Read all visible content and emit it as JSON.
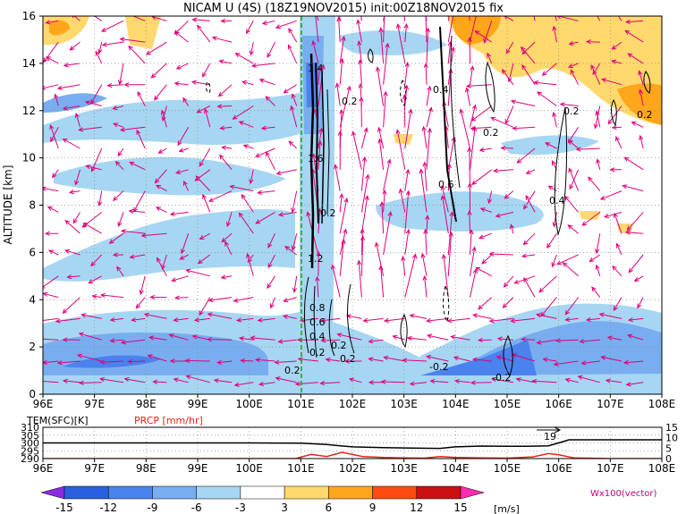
{
  "chart_data": [
    {
      "type": "heatmap",
      "title": "NICAM U (4S) (18Z19NOV2015) init:00Z18NOV2015 fix",
      "xlabel": "",
      "ylabel": "ALTITUDE [km]",
      "xlim": [
        96,
        108
      ],
      "ylim": [
        0,
        16
      ],
      "x_ticks": [
        "96E",
        "97E",
        "98E",
        "99E",
        "100E",
        "101E",
        "102E",
        "103E",
        "104E",
        "105E",
        "106E",
        "107E",
        "108E"
      ],
      "y_ticks": [
        "0",
        "2",
        "4",
        "6",
        "8",
        "10",
        "12",
        "14",
        "16"
      ],
      "grid": true,
      "shading": "U wind",
      "contour_labels": [
        "0.2",
        "0.2",
        "1.6",
        "0.2",
        "1.2",
        "0.8",
        "0.6",
        "0.4",
        "0.2",
        "0.2",
        "0.2",
        "0.4",
        "0.2",
        "0.4",
        "0.6",
        "0.2",
        "0.2",
        "0.2",
        "0.2",
        "0.4",
        "-0.2",
        "-0.2",
        "1.4",
        "1.2"
      ],
      "colorbar": {
        "levels": [
          "-15",
          "-12",
          "-9",
          "-6",
          "-3",
          "3",
          "6",
          "9",
          "12",
          "15"
        ],
        "colors": [
          "#8a2be2",
          "#2a5fe0",
          "#4a82ee",
          "#78aef0",
          "#a6d6f2",
          "#ffffff",
          "#ffd86e",
          "#ffa61a",
          "#ff4a12",
          "#cc0f12",
          "#ff2db0"
        ],
        "unit": "[m/s]"
      },
      "vector_label": "Wx100(vector)"
    },
    {
      "type": "line",
      "title": "",
      "xlim": [
        96,
        108
      ],
      "x_ticks": [
        "96E",
        "97E",
        "98E",
        "99E",
        "100E",
        "101E",
        "102E",
        "103E",
        "104E",
        "105E",
        "106E",
        "107E",
        "108E"
      ],
      "left_axis_ticks": [
        "310",
        "305",
        "300",
        "295",
        "290"
      ],
      "right_axis_ticks": [
        "15",
        "10",
        "5",
        "0"
      ],
      "series": [
        {
          "name": "TEM(SFC)[K]",
          "color": "#000000",
          "x": [
            96,
            97,
            98,
            99,
            100,
            101,
            101.5,
            102,
            102.6,
            103.3,
            103.7,
            104,
            104.5,
            105,
            105.4,
            105.8,
            106,
            106.2,
            107,
            108
          ],
          "y": [
            300,
            300,
            300,
            300,
            300,
            299.8,
            299,
            297.5,
            297,
            296.6,
            296.5,
            297.5,
            298,
            297.8,
            297.9,
            298.2,
            300,
            302,
            302,
            302
          ]
        },
        {
          "name": "PRCP [mm/hr]",
          "color": "#e8201a",
          "x": [
            96,
            100.9,
            101.2,
            101.5,
            101.8,
            102.2,
            102.6,
            103,
            103.4,
            103.7,
            104,
            104.5,
            105,
            105.5,
            105.8,
            106,
            106.3,
            107,
            108
          ],
          "y": [
            0,
            0,
            2,
            1,
            3,
            1,
            0.5,
            0.3,
            0.2,
            1,
            0.5,
            0.3,
            0.2,
            0.8,
            2.4,
            1.8,
            0.3,
            0,
            0
          ]
        }
      ],
      "annotations": [
        "19"
      ]
    }
  ]
}
